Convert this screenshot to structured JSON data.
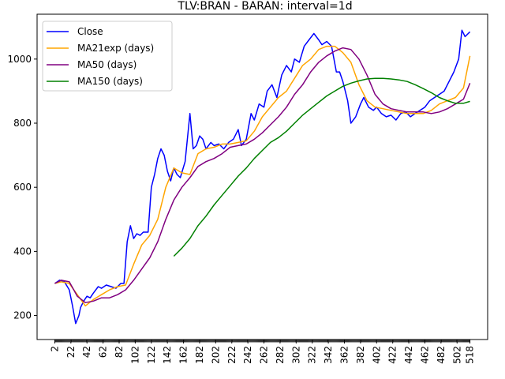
{
  "chart_data": {
    "type": "line",
    "title": "TLV:BRAN - BARAN: interval=1d",
    "xlabel": "",
    "ylabel": "",
    "xlim": [
      -20,
      540
    ],
    "ylim": [
      125,
      1140
    ],
    "x_ticks": [
      2,
      22,
      42,
      62,
      82,
      102,
      122,
      142,
      162,
      182,
      202,
      222,
      242,
      262,
      282,
      302,
      322,
      342,
      362,
      382,
      402,
      422,
      442,
      462,
      482,
      502,
      518
    ],
    "x_tick_labels": [
      "2",
      "22",
      "42",
      "62",
      "82",
      "102",
      "122",
      "142",
      "162",
      "182",
      "202",
      "222",
      "242",
      "262",
      "282",
      "302",
      "322",
      "342",
      "362",
      "382",
      "402",
      "422",
      "442",
      "462",
      "482",
      "502",
      "518"
    ],
    "y_ticks": [
      200,
      400,
      600,
      800,
      1000
    ],
    "y_tick_labels": [
      "200",
      "400",
      "600",
      "800",
      "1000"
    ],
    "grid": false,
    "legend": "top-left",
    "series": [
      {
        "name": "Close",
        "color": "#0000ff",
        "x": [
          2,
          8,
          14,
          20,
          24,
          28,
          32,
          34,
          38,
          42,
          46,
          50,
          56,
          60,
          66,
          72,
          78,
          84,
          88,
          92,
          96,
          100,
          104,
          108,
          112,
          118,
          122,
          126,
          130,
          134,
          138,
          142,
          146,
          150,
          154,
          158,
          164,
          170,
          174,
          178,
          182,
          186,
          190,
          196,
          200,
          206,
          212,
          218,
          224,
          230,
          234,
          240,
          246,
          250,
          256,
          262,
          266,
          272,
          278,
          284,
          290,
          296,
          300,
          306,
          312,
          318,
          324,
          330,
          334,
          340,
          346,
          352,
          356,
          360,
          366,
          370,
          376,
          382,
          386,
          392,
          398,
          402,
          408,
          414,
          420,
          426,
          432,
          438,
          444,
          450,
          456,
          462,
          468,
          474,
          480,
          486,
          492,
          498,
          504,
          508,
          512,
          518
        ],
        "values": [
          300,
          310,
          305,
          280,
          230,
          175,
          200,
          225,
          245,
          260,
          255,
          270,
          290,
          285,
          295,
          290,
          285,
          300,
          300,
          430,
          480,
          440,
          455,
          450,
          460,
          460,
          600,
          640,
          690,
          720,
          700,
          650,
          620,
          660,
          640,
          630,
          680,
          830,
          720,
          730,
          760,
          750,
          720,
          740,
          730,
          735,
          720,
          740,
          750,
          780,
          730,
          750,
          830,
          810,
          860,
          850,
          900,
          920,
          880,
          950,
          980,
          960,
          1000,
          990,
          1040,
          1060,
          1080,
          1060,
          1045,
          1055,
          1040,
          960,
          960,
          930,
          870,
          800,
          820,
          860,
          880,
          850,
          840,
          850,
          830,
          820,
          825,
          810,
          830,
          835,
          820,
          830,
          840,
          850,
          870,
          880,
          890,
          900,
          930,
          960,
          1000,
          1090,
          1070,
          1085
        ]
      },
      {
        "name": "MA21exp (days)",
        "color": "#ffa500",
        "x": [
          2,
          10,
          20,
          30,
          40,
          50,
          60,
          70,
          80,
          90,
          100,
          110,
          120,
          130,
          140,
          150,
          160,
          170,
          180,
          190,
          200,
          210,
          220,
          230,
          240,
          250,
          260,
          270,
          280,
          290,
          300,
          310,
          320,
          330,
          340,
          350,
          360,
          370,
          380,
          390,
          400,
          410,
          420,
          430,
          440,
          450,
          460,
          470,
          480,
          490,
          500,
          510,
          518
        ],
        "values": [
          300,
          305,
          300,
          265,
          230,
          250,
          265,
          280,
          290,
          295,
          360,
          420,
          450,
          500,
          600,
          660,
          645,
          640,
          705,
          720,
          725,
          735,
          735,
          740,
          745,
          775,
          820,
          850,
          880,
          900,
          940,
          980,
          1000,
          1030,
          1040,
          1040,
          1020,
          990,
          920,
          870,
          850,
          845,
          840,
          835,
          830,
          830,
          830,
          840,
          860,
          870,
          880,
          910,
          1010
        ]
      },
      {
        "name": "MA50 (days)",
        "color": "#800080",
        "x": [
          2,
          10,
          20,
          30,
          40,
          50,
          60,
          70,
          80,
          90,
          100,
          110,
          120,
          130,
          140,
          150,
          160,
          170,
          180,
          190,
          200,
          210,
          220,
          230,
          240,
          250,
          260,
          270,
          280,
          290,
          300,
          310,
          320,
          330,
          340,
          350,
          360,
          370,
          380,
          390,
          400,
          410,
          420,
          430,
          440,
          450,
          460,
          470,
          480,
          490,
          500,
          510,
          518
        ],
        "values": [
          300,
          310,
          305,
          260,
          240,
          245,
          255,
          255,
          265,
          280,
          310,
          345,
          380,
          430,
          500,
          560,
          600,
          630,
          665,
          680,
          690,
          705,
          725,
          730,
          735,
          750,
          770,
          795,
          820,
          850,
          890,
          920,
          960,
          990,
          1010,
          1025,
          1035,
          1030,
          1000,
          950,
          890,
          860,
          845,
          840,
          835,
          835,
          835,
          830,
          835,
          845,
          860,
          875,
          925
        ]
      },
      {
        "name": "MA150 (days)",
        "color": "#008000",
        "x": [
          150,
          160,
          170,
          180,
          190,
          200,
          210,
          220,
          230,
          240,
          250,
          260,
          270,
          280,
          290,
          300,
          310,
          320,
          330,
          340,
          350,
          360,
          370,
          380,
          390,
          400,
          410,
          420,
          430,
          440,
          450,
          460,
          470,
          480,
          490,
          500,
          510,
          518
        ],
        "values": [
          385,
          410,
          440,
          480,
          510,
          545,
          575,
          605,
          635,
          660,
          690,
          715,
          740,
          755,
          775,
          800,
          825,
          845,
          865,
          885,
          900,
          915,
          925,
          932,
          938,
          940,
          940,
          938,
          935,
          930,
          920,
          908,
          895,
          880,
          870,
          862,
          862,
          868
        ]
      }
    ]
  }
}
